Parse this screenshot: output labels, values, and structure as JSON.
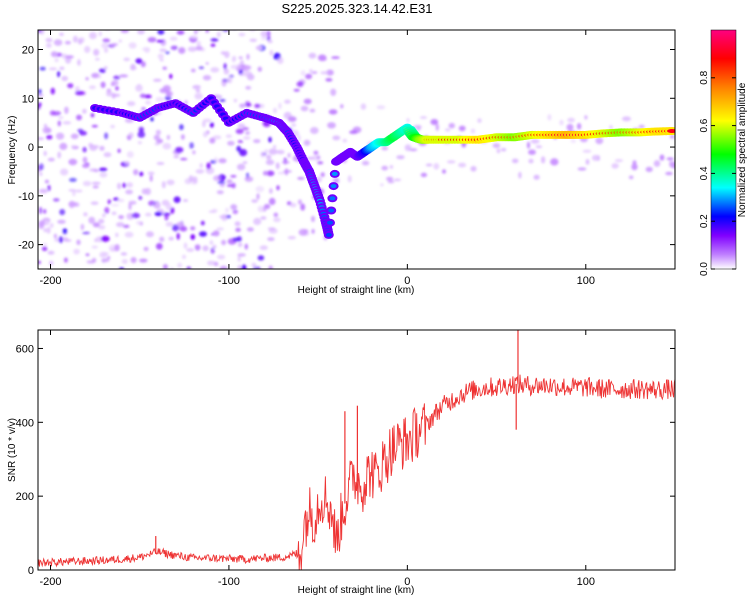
{
  "figure_title": "S225.2025.323.14.42.E31",
  "chart_data": [
    {
      "type": "heatmap",
      "name": "spectrogram",
      "title": "S225.2025.323.14.42.E31",
      "xlabel": "Height of straight line (km)",
      "ylabel": "Frequency (Hz)",
      "xlim": [
        -207,
        150
      ],
      "ylim": [
        -25,
        24
      ],
      "xticks": [
        -200,
        -100,
        0,
        100
      ],
      "yticks": [
        -20,
        -10,
        0,
        10,
        20
      ],
      "colorbar": {
        "label": "Normalized spectral amplitude",
        "range": [
          0,
          1
        ],
        "ticks": [
          0.0,
          0.2,
          0.4,
          0.6,
          0.8
        ],
        "tick_labels": [
          "0.0",
          "0.2",
          "0.4",
          "0.6",
          "0.8"
        ],
        "colormap": [
          "#ffffff",
          "#8000ff",
          "#0000ff",
          "#00ffff",
          "#00ff00",
          "#ffff00",
          "#ff8000",
          "#ff0000",
          "#ff0080"
        ]
      },
      "ridge": {
        "x": [
          -175,
          -160,
          -150,
          -140,
          -130,
          -120,
          -110,
          -100,
          -90,
          -80,
          -72,
          -67,
          -62,
          -58,
          -55,
          -52,
          -49,
          -46,
          -44,
          -40,
          -36,
          -32,
          -28,
          -24,
          -20,
          -16,
          -12,
          -8,
          -4,
          0,
          4,
          8,
          12,
          20,
          30,
          40,
          50,
          60,
          70,
          80,
          90,
          100,
          110,
          120,
          130,
          140,
          150
        ],
        "y": [
          8,
          7,
          6,
          8,
          9,
          7,
          10,
          5,
          7,
          6,
          5,
          3,
          0,
          -3,
          -5,
          -8,
          -11,
          -15,
          -18,
          -3,
          -2,
          -1,
          -2,
          -1,
          0,
          1,
          1,
          2,
          3,
          4,
          2,
          1.5,
          1.5,
          1.5,
          1.5,
          1.5,
          2,
          2,
          2.5,
          2.5,
          2.5,
          2.5,
          2.8,
          3,
          3,
          3.2,
          3.3
        ],
        "amplitude": [
          0.2,
          0.2,
          0.25,
          0.25,
          0.2,
          0.25,
          0.2,
          0.2,
          0.25,
          0.25,
          0.3,
          0.25,
          0.2,
          0.2,
          0.25,
          0.3,
          0.3,
          0.25,
          0.25,
          0.3,
          0.3,
          0.35,
          0.4,
          0.45,
          0.55,
          0.6,
          0.65,
          0.7,
          0.65,
          0.6,
          0.7,
          0.8,
          0.85,
          0.85,
          0.85,
          0.9,
          0.85,
          0.8,
          0.85,
          0.9,
          0.95,
          0.9,
          0.85,
          0.8,
          0.85,
          0.9,
          0.9
        ]
      }
    },
    {
      "type": "line",
      "name": "snr",
      "title": "",
      "xlabel": "Height of straight line (km)",
      "ylabel": "SNR (10 * v/v)",
      "xlim": [
        -207,
        150
      ],
      "ylim": [
        0,
        650
      ],
      "xticks": [
        -200,
        -100,
        0,
        100
      ],
      "yticks": [
        0,
        200,
        400,
        600
      ],
      "color": "#ee3333",
      "series": [
        {
          "name": "SNR",
          "x": [
            -207,
            -190,
            -170,
            -160,
            -150,
            -140,
            -130,
            -120,
            -110,
            -100,
            -90,
            -80,
            -70,
            -65,
            -60,
            -58,
            -55,
            -52,
            -50,
            -48,
            -45,
            -42,
            -40,
            -38,
            -35,
            -32,
            -30,
            -28,
            -25,
            -22,
            -20,
            -18,
            -15,
            -12,
            -10,
            -8,
            -5,
            -2,
            0,
            3,
            6,
            10,
            15,
            20,
            25,
            30,
            35,
            40,
            45,
            50,
            55,
            60,
            65,
            70,
            80,
            90,
            100,
            110,
            120,
            130,
            140,
            150
          ],
          "y": [
            15,
            18,
            22,
            25,
            30,
            45,
            35,
            28,
            28,
            26,
            25,
            28,
            30,
            35,
            45,
            120,
            160,
            140,
            180,
            200,
            190,
            150,
            70,
            120,
            180,
            230,
            260,
            240,
            230,
            260,
            270,
            250,
            280,
            300,
            320,
            330,
            340,
            345,
            350,
            360,
            380,
            390,
            420,
            445,
            460,
            475,
            485,
            490,
            495,
            495,
            500,
            505,
            500,
            500,
            500,
            495,
            495,
            490,
            490,
            490,
            488,
            490
          ]
        }
      ],
      "spikes": [
        {
          "x": -141,
          "y": 92
        },
        {
          "x": -28,
          "y": 445
        },
        {
          "x": -35,
          "y": 430
        },
        {
          "x": 62,
          "y": 650
        },
        {
          "x": 61,
          "y": 380
        }
      ]
    }
  ]
}
